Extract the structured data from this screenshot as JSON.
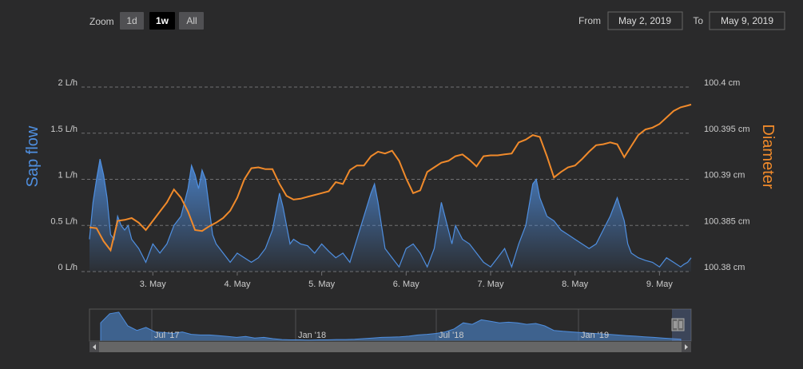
{
  "zoom": {
    "label": "Zoom",
    "buttons": [
      {
        "label": "1d",
        "active": false
      },
      {
        "label": "1w",
        "active": true
      },
      {
        "label": "All",
        "active": false
      }
    ]
  },
  "range": {
    "from_label": "From",
    "from_value": "May 2, 2019",
    "to_label": "To",
    "to_value": "May 9, 2019"
  },
  "colors": {
    "sap_flow": "#4f8fe0",
    "diameter": "#f08a2b",
    "background": "#2a2a2b"
  },
  "chart_data": {
    "type": "line",
    "legend": "none",
    "grid": true,
    "x_range": [
      "2019-05-02 06:00",
      "2019-05-09 09:00"
    ],
    "x_ticks": [
      {
        "label": "3. May",
        "x": "2019-05-03 00:00"
      },
      {
        "label": "4. May",
        "x": "2019-05-04 00:00"
      },
      {
        "label": "5. May",
        "x": "2019-05-05 00:00"
      },
      {
        "label": "6. May",
        "x": "2019-05-06 00:00"
      },
      {
        "label": "7. May",
        "x": "2019-05-07 00:00"
      },
      {
        "label": "8. May",
        "x": "2019-05-08 00:00"
      },
      {
        "label": "9. May",
        "x": "2019-05-09 00:00"
      }
    ],
    "y_left": {
      "title": "Sap flow",
      "range": [
        0,
        2
      ],
      "ticks": [
        {
          "label": "0 L/h",
          "value": 0
        },
        {
          "label": "0.5 L/h",
          "value": 0.5
        },
        {
          "label": "1 L/h",
          "value": 1
        },
        {
          "label": "1.5 L/h",
          "value": 1.5
        },
        {
          "label": "2 L/h",
          "value": 2
        }
      ]
    },
    "y_right": {
      "title": "Diameter",
      "range": [
        100.38,
        100.4
      ],
      "ticks": [
        {
          "label": "100.38 cm",
          "value": 100.38
        },
        {
          "label": "100.385 cm",
          "value": 100.385
        },
        {
          "label": "100.39 cm",
          "value": 100.39
        },
        {
          "label": "100.395 cm",
          "value": 100.395
        },
        {
          "label": "100.4 cm",
          "value": 100.4
        }
      ]
    },
    "series": [
      {
        "type": "area",
        "axis": "left",
        "x": [
          "2019-05-02 06:00",
          "2019-05-02 07:00",
          "2019-05-02 08:00",
          "2019-05-02 09:00",
          "2019-05-02 10:00",
          "2019-05-02 11:00",
          "2019-05-02 12:00",
          "2019-05-02 13:00",
          "2019-05-02 14:00",
          "2019-05-02 15:00",
          "2019-05-02 16:00",
          "2019-05-02 17:00",
          "2019-05-02 18:00",
          "2019-05-02 19:00",
          "2019-05-02 20:00",
          "2019-05-02 22:00",
          "2019-05-03 00:00",
          "2019-05-03 02:00",
          "2019-05-03 04:00",
          "2019-05-03 06:00",
          "2019-05-03 08:00",
          "2019-05-03 10:00",
          "2019-05-03 11:00",
          "2019-05-03 12:00",
          "2019-05-03 13:00",
          "2019-05-03 14:00",
          "2019-05-03 15:00",
          "2019-05-03 16:00",
          "2019-05-03 17:00",
          "2019-05-03 18:00",
          "2019-05-03 20:00",
          "2019-05-03 22:00",
          "2019-05-04 00:00",
          "2019-05-04 02:00",
          "2019-05-04 04:00",
          "2019-05-04 06:00",
          "2019-05-04 08:00",
          "2019-05-04 10:00",
          "2019-05-04 12:00",
          "2019-05-04 13:00",
          "2019-05-04 14:00",
          "2019-05-04 15:00",
          "2019-05-04 16:00",
          "2019-05-04 18:00",
          "2019-05-04 20:00",
          "2019-05-04 22:00",
          "2019-05-05 00:00",
          "2019-05-05 02:00",
          "2019-05-05 04:00",
          "2019-05-05 06:00",
          "2019-05-05 08:00",
          "2019-05-05 10:00",
          "2019-05-05 12:00",
          "2019-05-05 14:00",
          "2019-05-05 15:00",
          "2019-05-05 16:00",
          "2019-05-05 17:00",
          "2019-05-05 18:00",
          "2019-05-05 20:00",
          "2019-05-05 22:00",
          "2019-05-06 00:00",
          "2019-05-06 02:00",
          "2019-05-06 04:00",
          "2019-05-06 06:00",
          "2019-05-06 08:00",
          "2019-05-06 10:00",
          "2019-05-06 11:00",
          "2019-05-06 12:00",
          "2019-05-06 13:00",
          "2019-05-06 14:00",
          "2019-05-06 16:00",
          "2019-05-06 18:00",
          "2019-05-06 20:00",
          "2019-05-06 22:00",
          "2019-05-07 00:00",
          "2019-05-07 02:00",
          "2019-05-07 04:00",
          "2019-05-07 06:00",
          "2019-05-07 08:00",
          "2019-05-07 10:00",
          "2019-05-07 12:00",
          "2019-05-07 13:00",
          "2019-05-07 14:00",
          "2019-05-07 15:00",
          "2019-05-07 16:00",
          "2019-05-07 18:00",
          "2019-05-07 20:00",
          "2019-05-07 22:00",
          "2019-05-08 00:00",
          "2019-05-08 02:00",
          "2019-05-08 04:00",
          "2019-05-08 06:00",
          "2019-05-08 08:00",
          "2019-05-08 10:00",
          "2019-05-08 12:00",
          "2019-05-08 14:00",
          "2019-05-08 15:00",
          "2019-05-08 16:00",
          "2019-05-08 18:00",
          "2019-05-08 20:00",
          "2019-05-08 22:00",
          "2019-05-09 00:00",
          "2019-05-09 02:00",
          "2019-05-09 04:00",
          "2019-05-09 06:00",
          "2019-05-09 07:00",
          "2019-05-09 08:00",
          "2019-05-09 09:00"
        ],
        "values": [
          0.35,
          0.75,
          1.0,
          1.22,
          1.05,
          0.8,
          0.4,
          0.35,
          0.6,
          0.5,
          0.45,
          0.5,
          0.35,
          0.3,
          0.25,
          0.1,
          0.3,
          0.2,
          0.3,
          0.5,
          0.6,
          0.9,
          1.15,
          1.05,
          0.9,
          1.1,
          1.0,
          0.7,
          0.4,
          0.3,
          0.2,
          0.1,
          0.2,
          0.15,
          0.1,
          0.15,
          0.25,
          0.45,
          0.85,
          0.7,
          0.5,
          0.3,
          0.35,
          0.3,
          0.28,
          0.2,
          0.3,
          0.22,
          0.15,
          0.2,
          0.1,
          0.35,
          0.6,
          0.85,
          0.95,
          0.75,
          0.5,
          0.25,
          0.15,
          0.05,
          0.25,
          0.3,
          0.2,
          0.05,
          0.25,
          0.75,
          0.6,
          0.45,
          0.3,
          0.5,
          0.35,
          0.3,
          0.2,
          0.1,
          0.05,
          0.15,
          0.25,
          0.05,
          0.3,
          0.5,
          0.95,
          1.0,
          0.8,
          0.7,
          0.6,
          0.55,
          0.45,
          0.4,
          0.35,
          0.3,
          0.25,
          0.3,
          0.45,
          0.6,
          0.8,
          0.55,
          0.3,
          0.2,
          0.15,
          0.12,
          0.1,
          0.05,
          0.15,
          0.1,
          0.05,
          0.08,
          0.1,
          0.15
        ]
      },
      {
        "type": "line",
        "axis": "right",
        "x": [
          "2019-05-02 06:00",
          "2019-05-02 08:00",
          "2019-05-02 10:00",
          "2019-05-02 12:00",
          "2019-05-02 14:00",
          "2019-05-02 16:00",
          "2019-05-02 18:00",
          "2019-05-02 20:00",
          "2019-05-02 22:00",
          "2019-05-03 00:00",
          "2019-05-03 02:00",
          "2019-05-03 04:00",
          "2019-05-03 06:00",
          "2019-05-03 08:00",
          "2019-05-03 10:00",
          "2019-05-03 12:00",
          "2019-05-03 14:00",
          "2019-05-03 16:00",
          "2019-05-03 18:00",
          "2019-05-03 20:00",
          "2019-05-03 22:00",
          "2019-05-04 00:00",
          "2019-05-04 02:00",
          "2019-05-04 04:00",
          "2019-05-04 06:00",
          "2019-05-04 08:00",
          "2019-05-04 10:00",
          "2019-05-04 12:00",
          "2019-05-04 14:00",
          "2019-05-04 16:00",
          "2019-05-04 18:00",
          "2019-05-04 20:00",
          "2019-05-04 22:00",
          "2019-05-05 00:00",
          "2019-05-05 02:00",
          "2019-05-05 04:00",
          "2019-05-05 06:00",
          "2019-05-05 08:00",
          "2019-05-05 10:00",
          "2019-05-05 12:00",
          "2019-05-05 14:00",
          "2019-05-05 16:00",
          "2019-05-05 18:00",
          "2019-05-05 20:00",
          "2019-05-05 22:00",
          "2019-05-06 00:00",
          "2019-05-06 02:00",
          "2019-05-06 04:00",
          "2019-05-06 06:00",
          "2019-05-06 08:00",
          "2019-05-06 10:00",
          "2019-05-06 12:00",
          "2019-05-06 14:00",
          "2019-05-06 16:00",
          "2019-05-06 18:00",
          "2019-05-06 20:00",
          "2019-05-06 22:00",
          "2019-05-07 00:00",
          "2019-05-07 02:00",
          "2019-05-07 04:00",
          "2019-05-07 06:00",
          "2019-05-07 08:00",
          "2019-05-07 10:00",
          "2019-05-07 12:00",
          "2019-05-07 14:00",
          "2019-05-07 16:00",
          "2019-05-07 18:00",
          "2019-05-07 20:00",
          "2019-05-07 22:00",
          "2019-05-08 00:00",
          "2019-05-08 02:00",
          "2019-05-08 04:00",
          "2019-05-08 06:00",
          "2019-05-08 08:00",
          "2019-05-08 10:00",
          "2019-05-08 12:00",
          "2019-05-08 14:00",
          "2019-05-08 16:00",
          "2019-05-08 18:00",
          "2019-05-08 20:00",
          "2019-05-08 22:00",
          "2019-05-09 00:00",
          "2019-05-09 02:00",
          "2019-05-09 04:00",
          "2019-05-09 06:00",
          "2019-05-09 08:00",
          "2019-05-09 09:00"
        ],
        "values": [
          100.3848,
          100.3847,
          100.3833,
          100.3823,
          100.3855,
          100.3856,
          100.3858,
          100.3853,
          100.3845,
          100.3855,
          100.3865,
          100.3875,
          100.3889,
          100.388,
          100.3865,
          100.3845,
          100.3844,
          100.3849,
          100.3853,
          100.3858,
          100.3866,
          100.388,
          100.39,
          100.3912,
          100.3913,
          100.3911,
          100.3911,
          100.3895,
          100.3882,
          100.3878,
          100.3879,
          100.3881,
          100.3883,
          100.3885,
          100.3887,
          100.3897,
          100.3895,
          100.391,
          100.3915,
          100.3915,
          100.3925,
          100.393,
          100.3928,
          100.3931,
          100.392,
          100.3901,
          100.3885,
          100.3888,
          100.3908,
          100.3913,
          100.3918,
          100.392,
          100.3925,
          100.3927,
          100.3921,
          100.3914,
          100.3925,
          100.3926,
          100.3926,
          100.3927,
          100.3928,
          100.394,
          100.3943,
          100.3948,
          100.3946,
          100.3925,
          100.3902,
          100.3908,
          100.3913,
          100.3915,
          100.3922,
          100.393,
          100.3937,
          100.3938,
          100.394,
          100.3938,
          100.3924,
          100.3936,
          100.3948,
          100.3954,
          100.3956,
          100.396,
          100.3967,
          100.3974,
          100.3978,
          100.398,
          100.3981
        ]
      }
    ]
  },
  "navigator": {
    "ticks": [
      {
        "label": "Jul '17"
      },
      {
        "label": "Jan '18"
      },
      {
        "label": "Jul '18"
      },
      {
        "label": "Jan '19"
      }
    ],
    "values": [
      0.6,
      0.9,
      0.95,
      0.5,
      0.35,
      0.45,
      0.3,
      0.28,
      0.25,
      0.3,
      0.22,
      0.2,
      0.2,
      0.18,
      0.15,
      0.12,
      0.15,
      0.1,
      0.12,
      0.08,
      0.05,
      0.04,
      0.04,
      0.03,
      0.04,
      0.04,
      0.05,
      0.05,
      0.06,
      0.08,
      0.1,
      0.12,
      0.13,
      0.14,
      0.16,
      0.2,
      0.22,
      0.25,
      0.3,
      0.4,
      0.6,
      0.55,
      0.7,
      0.65,
      0.6,
      0.62,
      0.6,
      0.55,
      0.58,
      0.5,
      0.35,
      0.32,
      0.3,
      0.28,
      0.26,
      0.24,
      0.22,
      0.2,
      0.18,
      0.16,
      0.14,
      0.12,
      0.1,
      0.08,
      0.06
    ]
  }
}
